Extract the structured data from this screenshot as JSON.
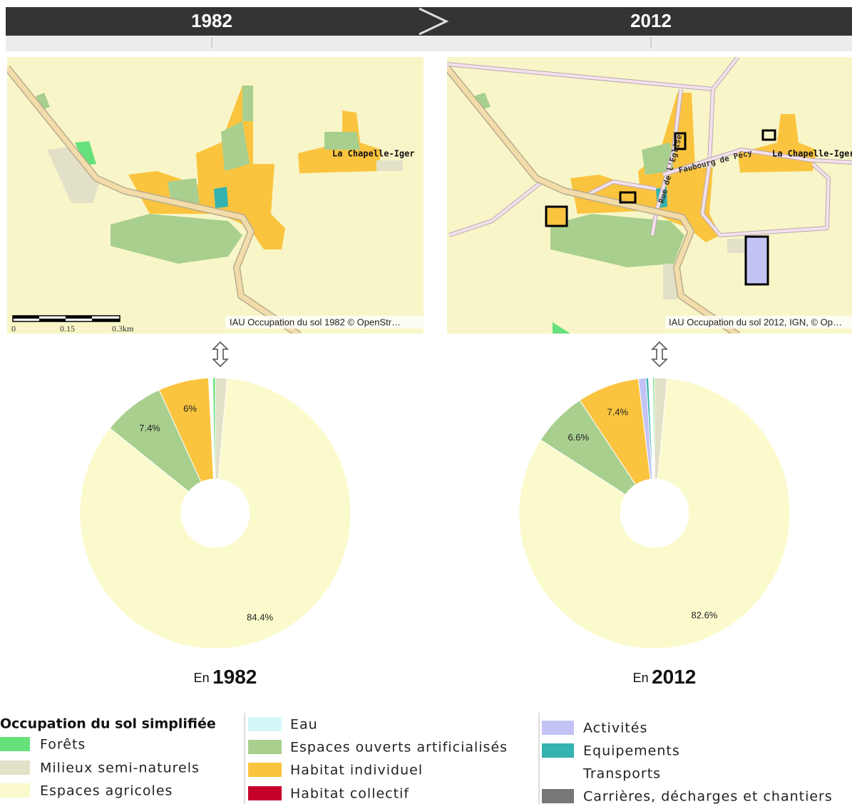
{
  "header": {
    "years": [
      "1982",
      "2012"
    ]
  },
  "maps": [
    {
      "place": "La Chapelle-Iger",
      "attribution": "IAU Occupation du sol 1982 © OpenStr…",
      "scale": [
        "0",
        "0.15",
        "0.3km"
      ]
    },
    {
      "place": "La Chapelle-Iger",
      "attribution": "IAU Occupation du sol 2012, IGN, © Op…",
      "streets": [
        "Rue de l'Eglise",
        "Faubourg de Pécy"
      ]
    }
  ],
  "chart_data": [
    {
      "type": "pie",
      "hole": true,
      "categories": [
        "Milieux semi-naturels",
        "Espaces agricoles",
        "Espaces ouverts artificialisés",
        "Habitat individuel",
        "Equipements",
        "Transports",
        "Forêts"
      ],
      "values": [
        1.4,
        84.4,
        7.4,
        6,
        0.1,
        0.4,
        0.3
      ],
      "value_labels": [
        null,
        "84.4%",
        "7.4%",
        "6%",
        null,
        null,
        null
      ],
      "colors": [
        "#e3e0c8",
        "#fafacc",
        "#a8cf8e",
        "#fbc43f",
        "#34b3b0",
        "#ffffff",
        "#66e07a"
      ],
      "caption": {
        "prefix": "En",
        "year": "1982"
      }
    },
    {
      "type": "pie",
      "hole": true,
      "categories": [
        "Milieux semi-naturels",
        "Espaces agricoles",
        "Espaces ouverts artificialisés",
        "Habitat individuel",
        "Activités",
        "Equipements",
        "Transports",
        "Forêts"
      ],
      "values": [
        1.5,
        82.6,
        6.6,
        7.4,
        0.9,
        0.3,
        0.5,
        0.2
      ],
      "value_labels": [
        null,
        "82.6%",
        "6.6%",
        "7.4%",
        null,
        null,
        null,
        null
      ],
      "colors": [
        "#e3e0c8",
        "#fafacc",
        "#a8cf8e",
        "#fbc43f",
        "#c3c3f5",
        "#34b3b0",
        "#ffffff",
        "#66e07a"
      ],
      "caption": {
        "prefix": "En",
        "year": "2012"
      }
    }
  ],
  "legend": {
    "title": "Occupation du sol simplifiée",
    "items": [
      {
        "label": "Forêts",
        "color": "#66e07a"
      },
      {
        "label": "Milieux semi-naturels",
        "color": "#e3e0c8"
      },
      {
        "label": "Espaces agricoles",
        "color": "#fafacc"
      },
      {
        "label": "Eau",
        "color": "#d5f7fa"
      },
      {
        "label": "Espaces ouverts artificialisés",
        "color": "#a8cf8e"
      },
      {
        "label": "Habitat individuel",
        "color": "#fbc43f"
      },
      {
        "label": "Habitat collectif",
        "color": "#c5002a"
      },
      {
        "label": "Activités",
        "color": "#c3c3f5"
      },
      {
        "label": "Equipements",
        "color": "#34b3b0"
      },
      {
        "label": "Transports",
        "color": "#ffffff"
      },
      {
        "label": "Carrières, décharges et chantiers",
        "color": "#777777"
      }
    ]
  }
}
